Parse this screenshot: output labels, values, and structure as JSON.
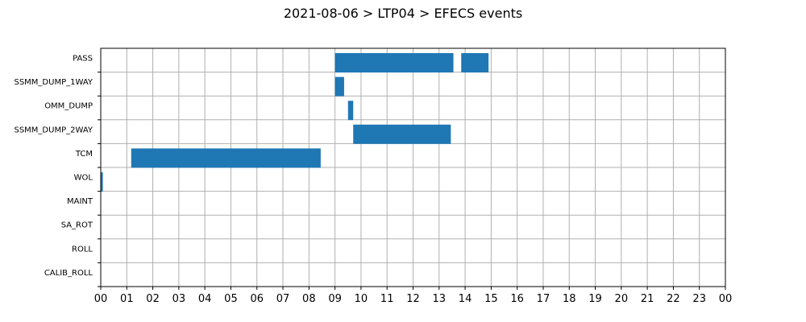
{
  "chart_data": {
    "type": "bar",
    "orientation": "horizontal-timeline",
    "title": "2021-08-06 > LTP04 > EFECS events",
    "xlabel": "",
    "ylabel": "",
    "x_tick_labels": [
      "00",
      "01",
      "02",
      "03",
      "04",
      "05",
      "06",
      "07",
      "08",
      "09",
      "10",
      "11",
      "12",
      "13",
      "14",
      "15",
      "16",
      "17",
      "18",
      "19",
      "20",
      "21",
      "22",
      "23",
      "00"
    ],
    "xlim_hours": [
      0,
      24
    ],
    "grid": true,
    "categories": [
      "PASS",
      "SSMM_DUMP_1WAY",
      "OMM_DUMP",
      "SSMM_DUMP_2WAY",
      "TCM",
      "WOL",
      "MAINT",
      "SA_ROT",
      "ROLL",
      "CALIB_ROLL"
    ],
    "events": [
      {
        "category": "PASS",
        "start_hour": 9.0,
        "end_hour": 13.55
      },
      {
        "category": "PASS",
        "start_hour": 13.85,
        "end_hour": 14.9
      },
      {
        "category": "SSMM_DUMP_1WAY",
        "start_hour": 9.0,
        "end_hour": 9.35
      },
      {
        "category": "OMM_DUMP",
        "start_hour": 9.5,
        "end_hour": 9.7
      },
      {
        "category": "SSMM_DUMP_2WAY",
        "start_hour": 9.7,
        "end_hour": 13.45
      },
      {
        "category": "TCM",
        "start_hour": 1.17,
        "end_hour": 8.45
      },
      {
        "category": "WOL",
        "start_hour": 0.0,
        "end_hour": 0.08
      }
    ],
    "bar_color": "#1f77b4",
    "grid_color": "#b0b0b0"
  }
}
